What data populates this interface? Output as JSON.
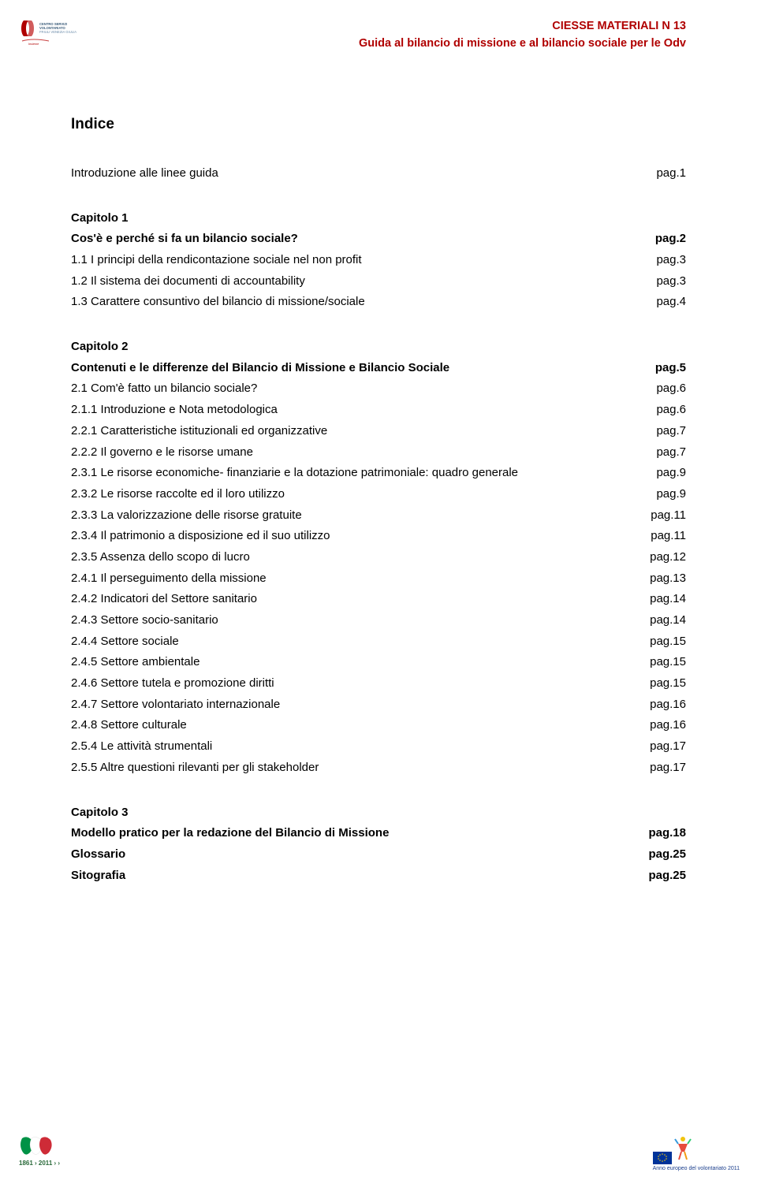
{
  "header": {
    "line1": "CIESSE MATERIALI N 13",
    "line2": "Guida al bilancio di missione e al bilancio sociale per le Odv",
    "text_color": "#b00000",
    "font_size_pt": 11,
    "font_weight": "bold"
  },
  "main_title": "Indice",
  "body_font_size_pt": 11,
  "line_height": 1.78,
  "background_color": "#ffffff",
  "text_color": "#000000",
  "toc": [
    {
      "type": "block",
      "rows": [
        {
          "title": "Introduzione alle linee guida",
          "page": "pag.1",
          "bold": false
        }
      ]
    },
    {
      "type": "block",
      "rows": [
        {
          "title": "Capitolo 1",
          "page": "",
          "bold": true
        },
        {
          "title": "Cos'è e perché si fa un bilancio sociale?",
          "page": "pag.2",
          "bold": true
        },
        {
          "title": "1.1 I principi della rendicontazione sociale nel non profit",
          "page": "pag.3",
          "bold": false
        },
        {
          "title": "1.2 Il sistema dei documenti di accountability",
          "page": "pag.3",
          "bold": false
        },
        {
          "title": "1.3 Carattere consuntivo del bilancio di missione/sociale",
          "page": "pag.4",
          "bold": false
        }
      ]
    },
    {
      "type": "block",
      "rows": [
        {
          "title": "Capitolo 2",
          "page": "",
          "bold": true
        },
        {
          "title": "Contenuti e le differenze del Bilancio di Missione e Bilancio Sociale",
          "page": "pag.5",
          "bold": true
        },
        {
          "title": "2.1 Com'è fatto un bilancio sociale?",
          "page": "pag.6",
          "bold": false
        },
        {
          "title": "2.1.1 Introduzione e Nota metodologica",
          "page": "pag.6",
          "bold": false
        },
        {
          "title": "2.2.1 Caratteristiche istituzionali ed organizzative",
          "page": "pag.7",
          "bold": false
        },
        {
          "title": "2.2.2 Il governo e le risorse umane",
          "page": "pag.7",
          "bold": false
        },
        {
          "title": "2.3.1 Le risorse economiche- finanziarie e la dotazione patrimoniale: quadro generale",
          "page": "pag.9",
          "bold": false
        },
        {
          "title": "2.3.2 Le risorse raccolte ed il loro utilizzo",
          "page": "pag.9",
          "bold": false
        },
        {
          "title": "2.3.3 La valorizzazione delle risorse gratuite",
          "page": "pag.11",
          "bold": false
        },
        {
          "title": "2.3.4 Il patrimonio a disposizione ed il suo utilizzo",
          "page": "pag.11",
          "bold": false
        },
        {
          "title": "2.3.5 Assenza dello scopo di lucro",
          "page": "pag.12",
          "bold": false
        },
        {
          "title": "2.4.1 Il perseguimento della missione",
          "page": "pag.13",
          "bold": false
        },
        {
          "title": "2.4.2 Indicatori del Settore sanitario",
          "page": "pag.14",
          "bold": false
        },
        {
          "title": "2.4.3 Settore socio-sanitario",
          "page": "pag.14",
          "bold": false
        },
        {
          "title": "2.4.4  Settore sociale",
          "page": "pag.15",
          "bold": false
        },
        {
          "title": "2.4.5 Settore ambientale",
          "page": "pag.15",
          "bold": false
        },
        {
          "title": "2.4.6 Settore tutela e promozione diritti",
          "page": "pag.15",
          "bold": false
        },
        {
          "title": "2.4.7 Settore volontariato internazionale",
          "page": "pag.16",
          "bold": false
        },
        {
          "title": "2.4.8 Settore culturale",
          "page": "pag.16",
          "bold": false
        },
        {
          "title": "2.5.4  Le attività strumentali",
          "page": "pag.17",
          "bold": false
        },
        {
          "title": "2.5.5 Altre questioni rilevanti per gli stakeholder",
          "page": "pag.17",
          "bold": false
        }
      ]
    },
    {
      "type": "block",
      "rows": [
        {
          "title": "Capitolo 3",
          "page": "",
          "bold": true
        },
        {
          "title": "Modello pratico per la redazione del Bilancio di Missione",
          "page": "pag.18",
          "bold": true
        },
        {
          "title": "Glossario",
          "page": "pag.25",
          "bold": true
        },
        {
          "title": "Sitografia",
          "page": "pag.25",
          "bold": true
        }
      ]
    }
  ],
  "logos": {
    "top_left": {
      "type": "cs-logo",
      "colors": {
        "bracket": "#b00000",
        "text": "#3a5c7a",
        "subtext": "#6b8caa"
      },
      "text_main": "CS",
      "text_sub1": "CENTRO SERVIZI",
      "text_sub2": "VOLONTARIATO",
      "text_sub3": "FRIULI VENEZIA GIULIA"
    },
    "bottom_left": {
      "type": "italy-anniversary",
      "flag_colors": [
        "#009246",
        "#ffffff",
        "#ce2b37"
      ],
      "text": "1861 › 2011 › ›",
      "text_color": "#2a6a3a"
    },
    "bottom_right": {
      "type": "eu-volunteering",
      "eu_flag_bg": "#003399",
      "eu_star_color": "#ffcc00",
      "figure_colors": [
        "#e74c3c",
        "#f1c40f",
        "#3498db",
        "#2ecc71"
      ],
      "caption": "Anno europeo del volontariato 2011"
    }
  }
}
